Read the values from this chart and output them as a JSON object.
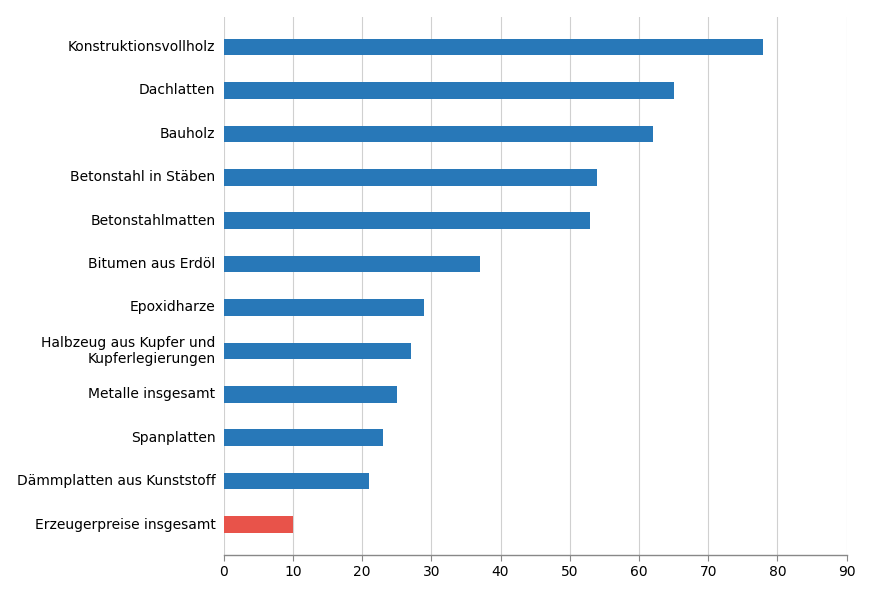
{
  "categories": [
    "Erzeugerpreise insgesamt",
    "Dämmplatten aus Kunststoff",
    "Spanplatten",
    "Metalle insgesamt",
    "Halbzeug aus Kupfer und\nKupferlegierungen",
    "Epoxidharze",
    "Bitumen aus Erdöl",
    "Betonstahlmatten",
    "Betonstahl in Stäben",
    "Bauholz",
    "Dachlatten",
    "Konstruktionsvollholz"
  ],
  "values": [
    10,
    21,
    23,
    25,
    27,
    29,
    37,
    53,
    54,
    62,
    65,
    78
  ],
  "bar_colors": [
    "#e8534a",
    "#2878b8",
    "#2878b8",
    "#2878b8",
    "#2878b8",
    "#2878b8",
    "#2878b8",
    "#2878b8",
    "#2878b8",
    "#2878b8",
    "#2878b8",
    "#2878b8"
  ],
  "xlim": [
    0,
    90
  ],
  "xticks": [
    0,
    10,
    20,
    30,
    40,
    50,
    60,
    70,
    80,
    90
  ],
  "background_color": "#ffffff",
  "grid_color": "#d0d0d0",
  "bar_height": 0.38,
  "label_fontsize": 10,
  "tick_fontsize": 10
}
